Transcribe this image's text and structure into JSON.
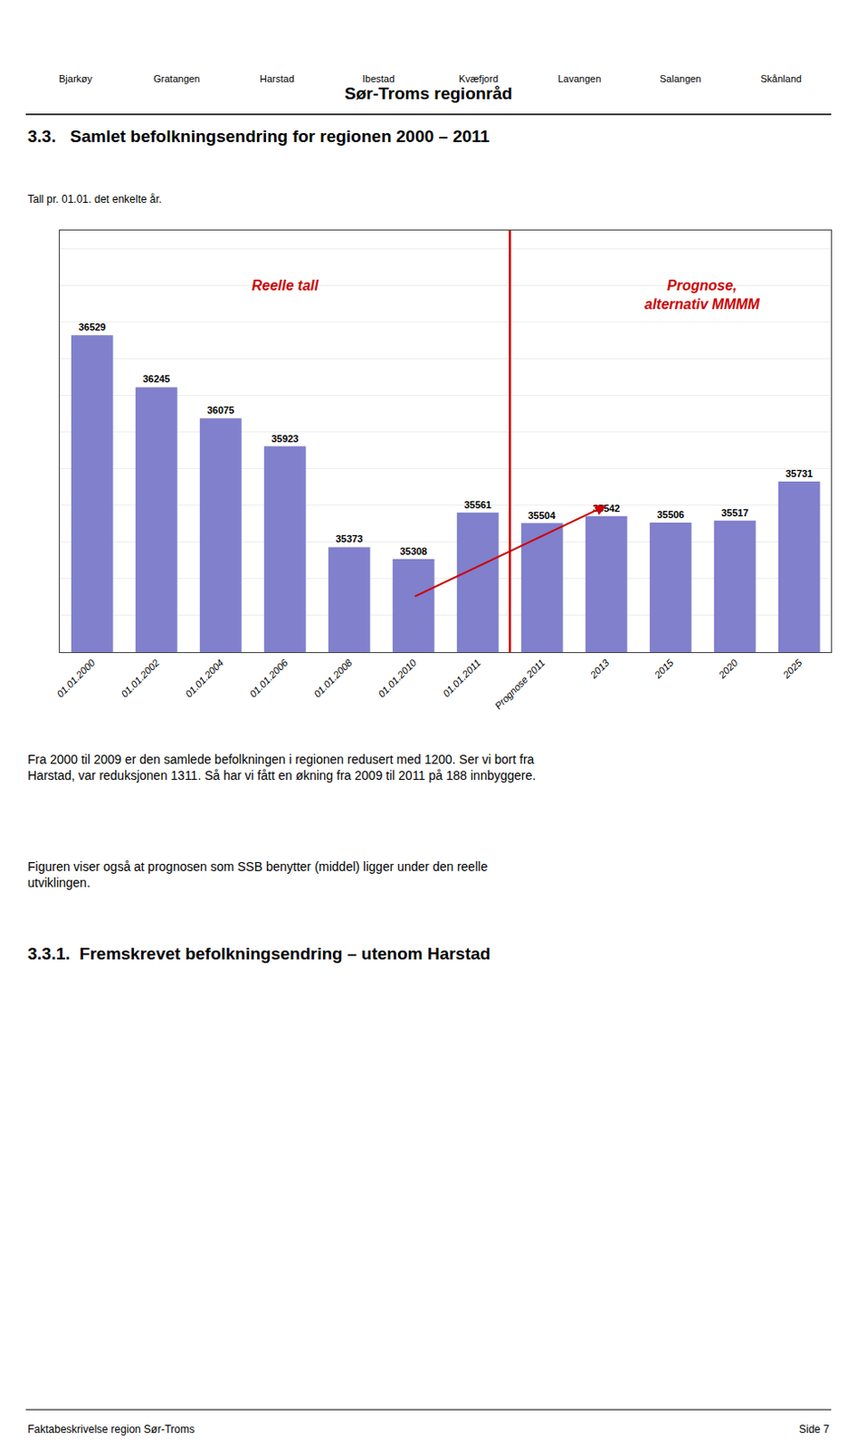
{
  "chart_data": {
    "type": "bar",
    "title": "3.3.   Samlet befolkningsendring for regionen 2000 – 2011",
    "subtitle": "Tall pr. 01.01. det enkelte år.",
    "categories": [
      "01.01.2000",
      "01.01.2002",
      "01.01.2004",
      "01.01.2006",
      "01.01.2008",
      "01.01.2010",
      "01.01.2011",
      "Prognose 2011",
      "2013",
      "2015",
      "2020",
      "2025"
    ],
    "values": [
      36529,
      36245,
      36075,
      35923,
      35373,
      35308,
      35561,
      35504,
      35542,
      35506,
      35517,
      35731
    ],
    "color": "#8080CC",
    "ylim": [
      34800,
      37100
    ],
    "yticks": [
      34800,
      35000,
      35200,
      35400,
      35600,
      35800,
      36000,
      36200,
      36400,
      36600,
      36800,
      37000
    ],
    "grid": true,
    "tick_labels": "x",
    "data_labels": true,
    "annotations": [
      {
        "text": "Reelle tall",
        "color": "#CC0000"
      },
      {
        "text": "Prognose,\nalternativ MMMM",
        "color": "#CC0000"
      }
    ]
  },
  "page": {
    "header_title": "Sør-Troms regionråd",
    "header_labels": [
      "Bjarkøy",
      "Gratangen",
      "Harstad",
      "Ibestad",
      "Kvæfjord",
      "Lavangen",
      "Salangen",
      "Skånland"
    ],
    "body": [
      "Fra 2000 til 2009 er den samlede befolkningen i regionen redusert med 1200. Ser vi bort fra\nHarstad, var reduksjonen 1311. Så har vi fått en økning fra 2009 til 2011 på 188 innbyggere.",
      "Figuren viser også at prognosen som SSB benytter (middel) ligger under den reelle\nutviklingen."
    ],
    "section_title": "3.3.1.  Fremskrevet befolkningsendring – utenom Harstad",
    "footer_left": "Faktabeskrivelse region Sør-Troms",
    "footer_right": "Side 7"
  }
}
